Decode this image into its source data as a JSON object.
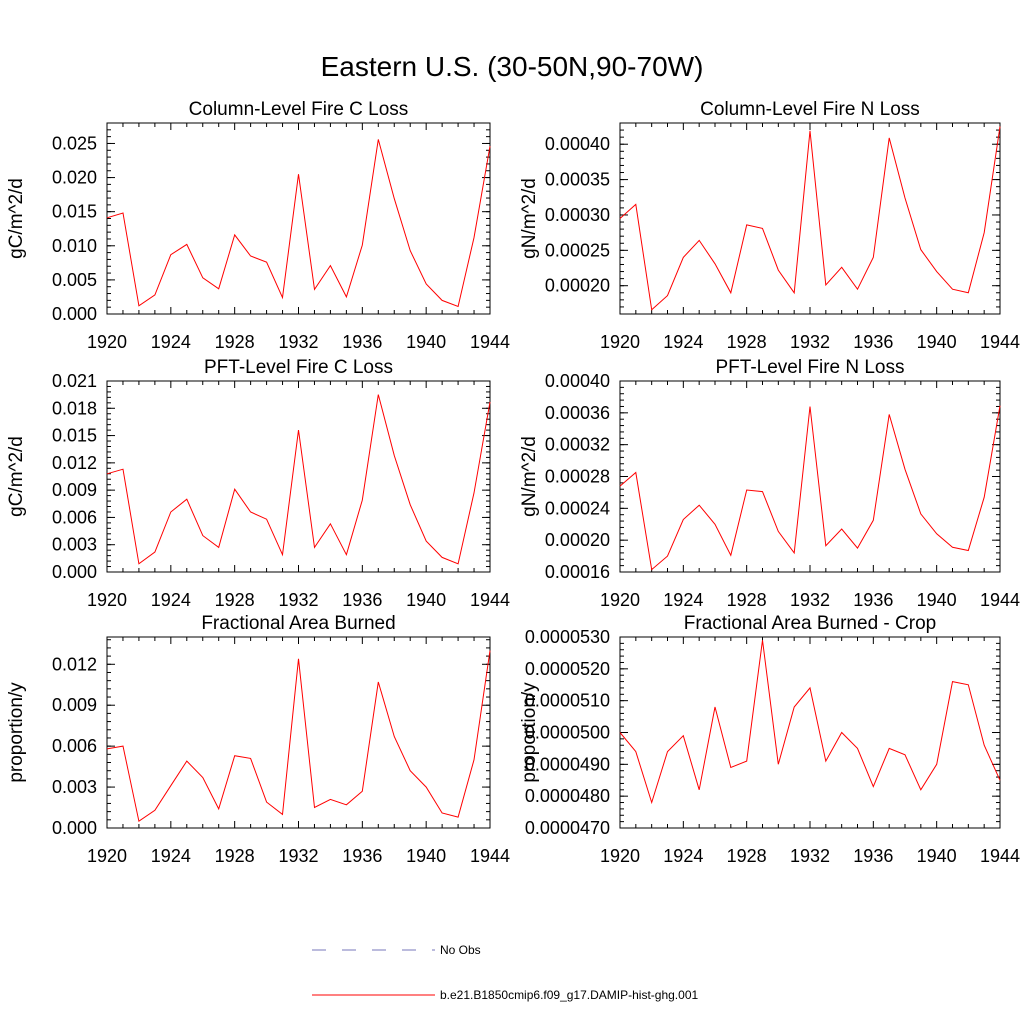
{
  "title": "Eastern U.S. (30-50N,90-70W)",
  "colors": {
    "series": "#ff0000",
    "obs": "#7777bb",
    "axis": "#000000"
  },
  "legend": {
    "obs_label": "No Obs",
    "model_label": "b.e21.B1850cmip6.f09_g17.DAMIP-hist-ghg.001"
  },
  "chart_data": [
    {
      "type": "line",
      "title": "Column-Level Fire C Loss",
      "xlabel": "",
      "ylabel": "gC/m^2/d",
      "xlim": [
        1920,
        1944
      ],
      "ylim": [
        0,
        0.028
      ],
      "xticks": [
        1920,
        1924,
        1928,
        1932,
        1936,
        1940,
        1944
      ],
      "yticks": [
        "0.000",
        "0.005",
        "0.010",
        "0.015",
        "0.020",
        "0.025"
      ],
      "x": [
        1920,
        1921,
        1922,
        1923,
        1924,
        1925,
        1926,
        1927,
        1928,
        1929,
        1930,
        1931,
        1932,
        1933,
        1934,
        1935,
        1936,
        1937,
        1938,
        1939,
        1940,
        1941,
        1942,
        1943,
        1944
      ],
      "values": [
        0.0141,
        0.0148,
        0.0012,
        0.0028,
        0.0087,
        0.0102,
        0.0053,
        0.0037,
        0.0116,
        0.0085,
        0.0076,
        0.0024,
        0.0205,
        0.0036,
        0.0071,
        0.0025,
        0.0101,
        0.0256,
        0.0169,
        0.0093,
        0.0044,
        0.002,
        0.0011,
        0.0112,
        0.0246
      ]
    },
    {
      "type": "line",
      "title": "Column-Level Fire N Loss",
      "xlabel": "",
      "ylabel": "gN/m^2/d",
      "xlim": [
        1920,
        1944
      ],
      "ylim": [
        0.00016,
        0.00043
      ],
      "xticks": [
        1920,
        1924,
        1928,
        1932,
        1936,
        1940,
        1944
      ],
      "yticks": [
        "0.00020",
        "0.00025",
        "0.00030",
        "0.00035",
        "0.00040"
      ],
      "x": [
        1920,
        1921,
        1922,
        1923,
        1924,
        1925,
        1926,
        1927,
        1928,
        1929,
        1930,
        1931,
        1932,
        1933,
        1934,
        1935,
        1936,
        1937,
        1938,
        1939,
        1940,
        1941,
        1942,
        1943,
        1944
      ],
      "values": [
        0.000295,
        0.000315,
        0.000166,
        0.000186,
        0.00024,
        0.000264,
        0.000231,
        0.00019,
        0.000286,
        0.000281,
        0.000222,
        0.00019,
        0.000419,
        0.000201,
        0.000226,
        0.000195,
        0.00024,
        0.000409,
        0.000324,
        0.000251,
        0.00022,
        0.000195,
        0.00019,
        0.000275,
        0.000425
      ]
    },
    {
      "type": "line",
      "title": "PFT-Level Fire C Loss",
      "xlabel": "",
      "ylabel": "gC/m^2/d",
      "xlim": [
        1920,
        1944
      ],
      "ylim": [
        0,
        0.021
      ],
      "xticks": [
        1920,
        1924,
        1928,
        1932,
        1936,
        1940,
        1944
      ],
      "yticks": [
        "0.000",
        "0.003",
        "0.006",
        "0.009",
        "0.012",
        "0.015",
        "0.018",
        "0.021"
      ],
      "x": [
        1920,
        1921,
        1922,
        1923,
        1924,
        1925,
        1926,
        1927,
        1928,
        1929,
        1930,
        1931,
        1932,
        1933,
        1934,
        1935,
        1936,
        1937,
        1938,
        1939,
        1940,
        1941,
        1942,
        1943,
        1944
      ],
      "values": [
        0.0108,
        0.0113,
        0.0009,
        0.0022,
        0.0066,
        0.008,
        0.004,
        0.0027,
        0.0091,
        0.0066,
        0.0058,
        0.0019,
        0.0156,
        0.0027,
        0.0053,
        0.0019,
        0.0079,
        0.0195,
        0.0128,
        0.0074,
        0.0034,
        0.0016,
        0.0009,
        0.0087,
        0.0187
      ]
    },
    {
      "type": "line",
      "title": "PFT-Level Fire N Loss",
      "xlabel": "",
      "ylabel": "gN/m^2/d",
      "xlim": [
        1920,
        1944
      ],
      "ylim": [
        0.00016,
        0.0004
      ],
      "xticks": [
        1920,
        1924,
        1928,
        1932,
        1936,
        1940,
        1944
      ],
      "yticks": [
        "0.00016",
        "0.00020",
        "0.00024",
        "0.00028",
        "0.00032",
        "0.00036",
        "0.00040"
      ],
      "x": [
        1920,
        1921,
        1922,
        1923,
        1924,
        1925,
        1926,
        1927,
        1928,
        1929,
        1930,
        1931,
        1932,
        1933,
        1934,
        1935,
        1936,
        1937,
        1938,
        1939,
        1940,
        1941,
        1942,
        1943,
        1944
      ],
      "values": [
        0.000268,
        0.000285,
        0.000163,
        0.00018,
        0.000226,
        0.000244,
        0.00022,
        0.000181,
        0.000263,
        0.000261,
        0.000211,
        0.000184,
        0.000368,
        0.000193,
        0.000214,
        0.00019,
        0.000225,
        0.000358,
        0.000289,
        0.000233,
        0.000208,
        0.000191,
        0.000187,
        0.000254,
        0.000369
      ]
    },
    {
      "type": "line",
      "title": "Fractional Area Burned",
      "xlabel": "",
      "ylabel": "proportion/y",
      "xlim": [
        1920,
        1944
      ],
      "ylim": [
        0,
        0.014
      ],
      "xticks": [
        1920,
        1924,
        1928,
        1932,
        1936,
        1940,
        1944
      ],
      "yticks": [
        "0.000",
        "0.003",
        "0.006",
        "0.009",
        "0.012"
      ],
      "x": [
        1920,
        1921,
        1922,
        1923,
        1924,
        1925,
        1926,
        1927,
        1928,
        1929,
        1930,
        1931,
        1932,
        1933,
        1934,
        1935,
        1936,
        1937,
        1938,
        1939,
        1940,
        1941,
        1942,
        1943,
        1944
      ],
      "values": [
        0.0058,
        0.006,
        0.0005,
        0.0013,
        0.0031,
        0.0049,
        0.0037,
        0.0014,
        0.0053,
        0.0051,
        0.0019,
        0.001,
        0.0124,
        0.0015,
        0.0021,
        0.0017,
        0.0027,
        0.0107,
        0.0067,
        0.0042,
        0.003,
        0.0011,
        0.0008,
        0.005,
        0.013
      ]
    },
    {
      "type": "line",
      "title": "Fractional Area Burned - Crop",
      "xlabel": "",
      "ylabel": "proportion/y",
      "xlim": [
        1920,
        1944
      ],
      "ylim": [
        4.7e-05,
        5.3e-05
      ],
      "xticks": [
        1920,
        1924,
        1928,
        1932,
        1936,
        1940,
        1944
      ],
      "yticks": [
        "0.0000470",
        "0.0000480",
        "0.0000490",
        "0.0000500",
        "0.0000510",
        "0.0000520",
        "0.0000530"
      ],
      "x": [
        1920,
        1921,
        1922,
        1923,
        1924,
        1925,
        1926,
        1927,
        1928,
        1929,
        1930,
        1931,
        1932,
        1933,
        1934,
        1935,
        1936,
        1937,
        1938,
        1939,
        1940,
        1941,
        1942,
        1943,
        1944
      ],
      "values": [
        5e-05,
        4.94e-05,
        4.78e-05,
        4.94e-05,
        4.99e-05,
        4.82e-05,
        5.08e-05,
        4.89e-05,
        4.91e-05,
        5.29e-05,
        4.9e-05,
        5.08e-05,
        5.14e-05,
        4.91e-05,
        5e-05,
        4.95e-05,
        4.83e-05,
        4.95e-05,
        4.93e-05,
        4.82e-05,
        4.9e-05,
        5.16e-05,
        5.15e-05,
        4.96e-05,
        4.85e-05
      ]
    }
  ]
}
